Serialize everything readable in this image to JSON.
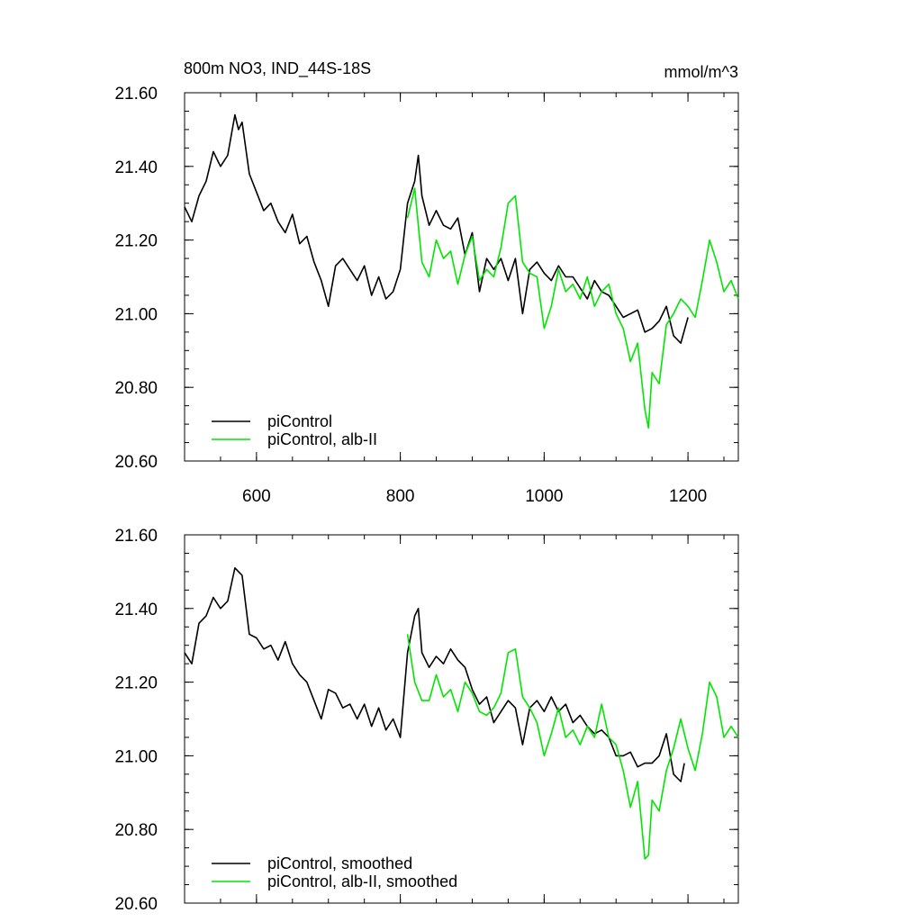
{
  "chart_data": [
    {
      "type": "line",
      "title_left": "800m NO3, IND_44S-18S",
      "title_right": "mmol/m^3",
      "xlabel": "",
      "ylabel": "",
      "xlim": [
        500,
        1270
      ],
      "ylim": [
        20.6,
        21.6
      ],
      "x_ticks": [
        "600",
        "800",
        "1000",
        "1200"
      ],
      "y_ticks": [
        "20.60",
        "20.80",
        "21.00",
        "21.20",
        "21.40",
        "21.60"
      ],
      "legend_position": "bottom-left",
      "grid": false,
      "series": [
        {
          "name": "piControl",
          "color": "#000000",
          "x": [
            500,
            510,
            520,
            530,
            540,
            550,
            560,
            570,
            575,
            580,
            590,
            600,
            610,
            620,
            630,
            640,
            650,
            660,
            670,
            680,
            690,
            700,
            710,
            720,
            730,
            740,
            750,
            760,
            770,
            780,
            790,
            800,
            810,
            820,
            825,
            830,
            840,
            850,
            860,
            870,
            880,
            890,
            900,
            910,
            920,
            930,
            940,
            950,
            960,
            970,
            980,
            990,
            1000,
            1010,
            1020,
            1030,
            1040,
            1050,
            1060,
            1070,
            1080,
            1090,
            1100,
            1110,
            1120,
            1130,
            1140,
            1150,
            1160,
            1170,
            1180,
            1190,
            1200
          ],
          "y": [
            21.29,
            21.25,
            21.32,
            21.36,
            21.44,
            21.4,
            21.43,
            21.54,
            21.5,
            21.52,
            21.38,
            21.33,
            21.28,
            21.3,
            21.25,
            21.22,
            21.27,
            21.19,
            21.21,
            21.14,
            21.09,
            21.02,
            21.13,
            21.15,
            21.12,
            21.09,
            21.13,
            21.05,
            21.1,
            21.04,
            21.06,
            21.12,
            21.3,
            21.36,
            21.43,
            21.32,
            21.24,
            21.28,
            21.24,
            21.23,
            21.26,
            21.16,
            21.22,
            21.06,
            21.15,
            21.12,
            21.15,
            21.09,
            21.15,
            21.0,
            21.12,
            21.14,
            21.11,
            21.09,
            21.13,
            21.1,
            21.1,
            21.07,
            21.04,
            21.09,
            21.06,
            21.05,
            21.02,
            20.99,
            21.0,
            21.01,
            20.95,
            20.96,
            20.98,
            21.02,
            20.94,
            20.92,
            20.99
          ]
        },
        {
          "name": "piControl, alb-II",
          "color": "#00e600",
          "x": [
            810,
            820,
            830,
            840,
            850,
            860,
            870,
            880,
            890,
            900,
            910,
            920,
            930,
            940,
            950,
            960,
            970,
            980,
            990,
            1000,
            1010,
            1020,
            1030,
            1040,
            1050,
            1060,
            1070,
            1080,
            1090,
            1100,
            1110,
            1120,
            1130,
            1140,
            1145,
            1150,
            1160,
            1170,
            1180,
            1190,
            1200,
            1210,
            1220,
            1230,
            1240,
            1250,
            1260,
            1270
          ],
          "y": [
            21.26,
            21.34,
            21.14,
            21.1,
            21.2,
            21.15,
            21.17,
            21.08,
            21.16,
            21.21,
            21.09,
            21.12,
            21.1,
            21.18,
            21.3,
            21.32,
            21.14,
            21.11,
            21.1,
            20.96,
            21.02,
            21.12,
            21.06,
            21.08,
            21.04,
            21.1,
            21.02,
            21.06,
            21.08,
            21.0,
            20.96,
            20.87,
            20.92,
            20.74,
            20.69,
            20.84,
            20.81,
            20.97,
            21.0,
            21.04,
            21.02,
            20.99,
            21.09,
            21.2,
            21.14,
            21.06,
            21.09,
            21.04
          ]
        }
      ]
    },
    {
      "type": "line",
      "title_left": "",
      "title_right": "",
      "xlabel": "",
      "ylabel": "",
      "xlim": [
        500,
        1270
      ],
      "ylim": [
        20.6,
        21.6
      ],
      "x_ticks": [],
      "y_ticks": [
        "20.60",
        "20.80",
        "21.00",
        "21.20",
        "21.40",
        "21.60"
      ],
      "legend_position": "bottom-left",
      "grid": false,
      "series": [
        {
          "name": "piControl, smoothed",
          "color": "#000000",
          "x": [
            500,
            510,
            520,
            530,
            540,
            550,
            560,
            570,
            580,
            590,
            600,
            610,
            620,
            630,
            640,
            650,
            660,
            670,
            680,
            690,
            700,
            710,
            720,
            730,
            740,
            750,
            760,
            770,
            780,
            790,
            800,
            810,
            820,
            825,
            830,
            840,
            850,
            860,
            870,
            880,
            890,
            900,
            910,
            920,
            930,
            940,
            950,
            960,
            970,
            980,
            990,
            1000,
            1010,
            1020,
            1030,
            1040,
            1050,
            1060,
            1070,
            1080,
            1090,
            1100,
            1110,
            1120,
            1130,
            1140,
            1150,
            1160,
            1170,
            1180,
            1190,
            1195
          ],
          "y": [
            21.28,
            21.25,
            21.36,
            21.38,
            21.43,
            21.4,
            21.42,
            21.51,
            21.49,
            21.33,
            21.32,
            21.29,
            21.3,
            21.26,
            21.31,
            21.25,
            21.22,
            21.2,
            21.15,
            21.1,
            21.18,
            21.17,
            21.13,
            21.14,
            21.1,
            21.14,
            21.08,
            21.13,
            21.07,
            21.1,
            21.05,
            21.28,
            21.38,
            21.4,
            21.28,
            21.24,
            21.27,
            21.25,
            21.29,
            21.26,
            21.24,
            21.18,
            21.14,
            21.16,
            21.09,
            21.12,
            21.15,
            21.13,
            21.03,
            21.13,
            21.15,
            21.12,
            21.16,
            21.12,
            21.14,
            21.09,
            21.11,
            21.08,
            21.06,
            21.07,
            21.05,
            21.0,
            21.0,
            21.01,
            20.97,
            20.98,
            20.98,
            21.0,
            21.06,
            20.95,
            20.93,
            20.98
          ]
        },
        {
          "name": "piControl, alb-II, smoothed",
          "color": "#00e600",
          "x": [
            810,
            820,
            830,
            840,
            850,
            860,
            870,
            880,
            890,
            900,
            910,
            920,
            930,
            940,
            950,
            960,
            970,
            980,
            990,
            1000,
            1010,
            1020,
            1030,
            1040,
            1050,
            1060,
            1070,
            1080,
            1090,
            1100,
            1110,
            1120,
            1130,
            1140,
            1145,
            1150,
            1160,
            1170,
            1180,
            1190,
            1200,
            1210,
            1220,
            1230,
            1240,
            1250,
            1260,
            1270
          ],
          "y": [
            21.33,
            21.2,
            21.15,
            21.15,
            21.22,
            21.16,
            21.18,
            21.12,
            21.2,
            21.17,
            21.12,
            21.11,
            21.13,
            21.17,
            21.28,
            21.29,
            21.16,
            21.13,
            21.09,
            21.0,
            21.06,
            21.13,
            21.05,
            21.07,
            21.03,
            21.08,
            21.05,
            21.14,
            21.05,
            21.03,
            20.96,
            20.86,
            20.93,
            20.72,
            20.73,
            20.88,
            20.85,
            20.96,
            21.02,
            21.1,
            21.02,
            20.96,
            21.06,
            21.2,
            21.16,
            21.05,
            21.08,
            21.05
          ]
        }
      ]
    }
  ]
}
